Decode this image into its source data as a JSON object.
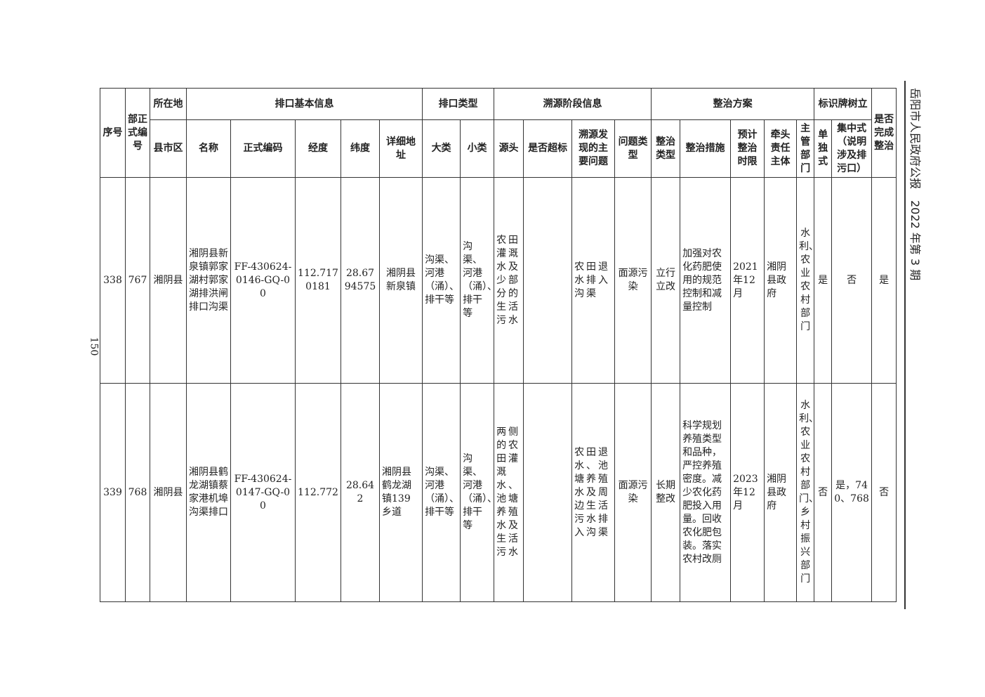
{
  "running_header": "岳阳市人民政府公报　2022 年第 3 期",
  "page_number": "150",
  "header": {
    "seq": "序号",
    "dept_code": "部正式编号",
    "location": "所在地",
    "county": "县市区",
    "basic_info": "排口基本信息",
    "name": "名称",
    "code": "正式编码",
    "lng": "经度",
    "lat": "纬度",
    "address": "详细地址",
    "outlet_type": "排口类型",
    "major": "大类",
    "minor": "小类",
    "trace": "溯源阶段信息",
    "source": "源头",
    "exceed": "是否超标",
    "main_problem": "溯源发现的主要问题",
    "problem_type": "问题类型",
    "plan": "整治方案",
    "fix_type": "整治类型",
    "measures": "整治措施",
    "deadline": "预计整治时限",
    "lead": "牵头责任主体",
    "dept": "主管部门",
    "sign": "标识牌树立",
    "single": "单独式",
    "central": "集中式（说明涉及排污口）",
    "done": "是否完成整治"
  },
  "rows": [
    {
      "seq": "338",
      "dept_code": "767",
      "county": "湘阴县",
      "name": "湘阴县新泉镇郭家湖村郭家湖排洪闸排口沟渠",
      "code": "FF-430624-0146-GQ-00",
      "lng": "112.7170181",
      "lat": "28.6794575",
      "address": "湘阴县新泉镇",
      "major": "沟渠、河港（涌）、排干等",
      "minor": "沟渠、河港（涌）、排干等",
      "source": "农田灌溉水及少部分的生活污水",
      "exceed": "",
      "main_problem": "农田退水排入沟渠",
      "problem_type": "面源污染",
      "fix_type": "立行立改",
      "measures": "加强对农化药肥使用的规范控制和减量控制",
      "deadline": "2021年12月",
      "lead": "湘阴县政府",
      "dept": "水利、农业农村部门",
      "single": "是",
      "central": "否",
      "done": "是"
    },
    {
      "seq": "339",
      "dept_code": "768",
      "county": "湘阴县",
      "name": "湘阴县鹤龙湖镇蔡家港机埠沟渠排口",
      "code": "FF-430624-0147-GQ-00",
      "lng": "112.772",
      "lat": "28.642",
      "address": "湘阴县鹤龙湖镇139乡道",
      "major": "沟渠、河港（涌）、排干等",
      "minor": "沟渠、河港（涌）、排干等",
      "source": "两侧的农田灌溉水、池塘养殖水及生活污水",
      "exceed": "",
      "main_problem": "农田退水、池塘养殖水及周边生活污水排入沟渠",
      "problem_type": "面源污染",
      "fix_type": "长期整改",
      "measures": "科学规划养殖类型和品种，严控养殖密度。减少农化药肥投入用量。回收农化肥包装。落实农村改厕",
      "deadline": "2023年12月",
      "lead": "湘阴县政府",
      "dept": "水利、农业农村部门、乡村振兴部门",
      "single": "否",
      "central": "是，740、768",
      "done": "否"
    }
  ]
}
